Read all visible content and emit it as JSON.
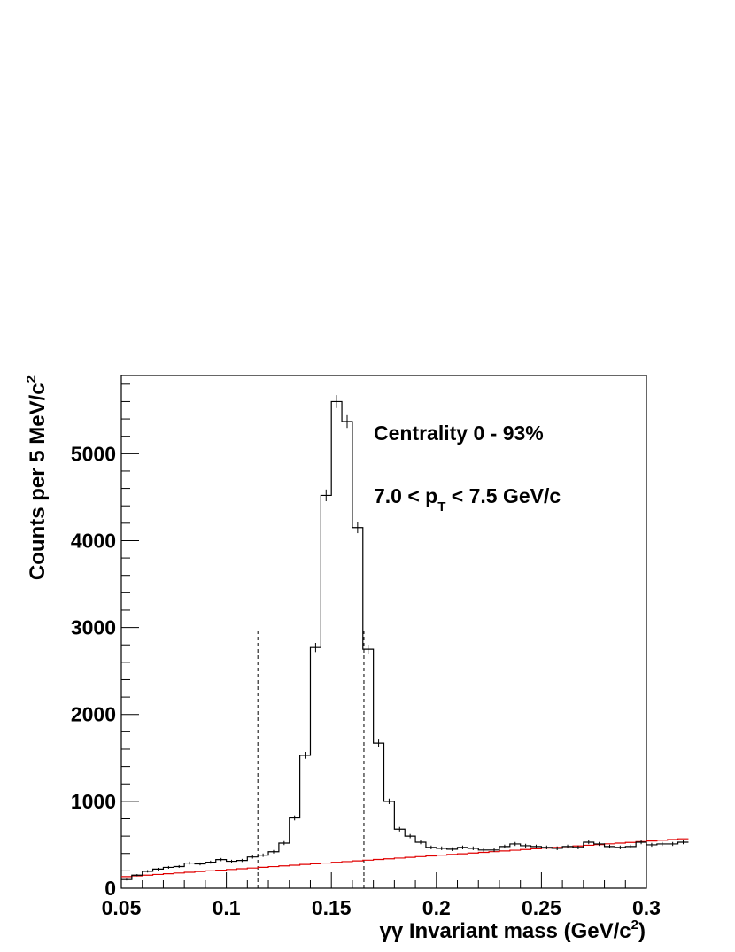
{
  "chart_data": {
    "type": "histogram",
    "xlabel_prefix": "γγ Invariant mass (GeV/c",
    "xlabel_sup": "2",
    "xlabel_suffix": ")",
    "ylabel_main": "Counts per 5 MeV/c",
    "ylabel_sup": "2",
    "xlim": [
      0.05,
      0.3
    ],
    "ylim": [
      0,
      5900
    ],
    "x_ticks": [
      "0.05",
      "0.1",
      "0.15",
      "0.2",
      "0.25",
      "0.3"
    ],
    "y_ticks": [
      "0",
      "1000",
      "2000",
      "3000",
      "4000",
      "5000"
    ],
    "bin_width": 0.005,
    "annotations": {
      "centrality": "Centrality 0 - 93%",
      "pt_prefix": "7.0 <  p",
      "pt_sub": "T",
      "pt_suffix": " < 7.5 GeV/c"
    },
    "signal_window": {
      "low": 0.115,
      "high": 0.1655,
      "height": 2970
    },
    "colors": {
      "data": "#000000",
      "background": "#e00000"
    },
    "series": [
      {
        "role": "data",
        "bin_edges_start": 0.05,
        "values": [
          100,
          150,
          195,
          220,
          240,
          250,
          290,
          280,
          300,
          330,
          310,
          320,
          360,
          380,
          420,
          520,
          810,
          1530,
          2770,
          4520,
          5600,
          5370,
          4150,
          2750,
          1670,
          1000,
          680,
          600,
          530,
          470,
          460,
          450,
          470,
          460,
          440,
          440,
          480,
          510,
          490,
          480,
          470,
          460,
          480,
          470,
          530,
          510,
          480,
          470,
          480,
          530,
          500,
          510,
          510,
          530
        ]
      },
      {
        "role": "background",
        "x": [
          0.05,
          0.3
        ],
        "y": [
          130,
          540
        ]
      }
    ]
  }
}
